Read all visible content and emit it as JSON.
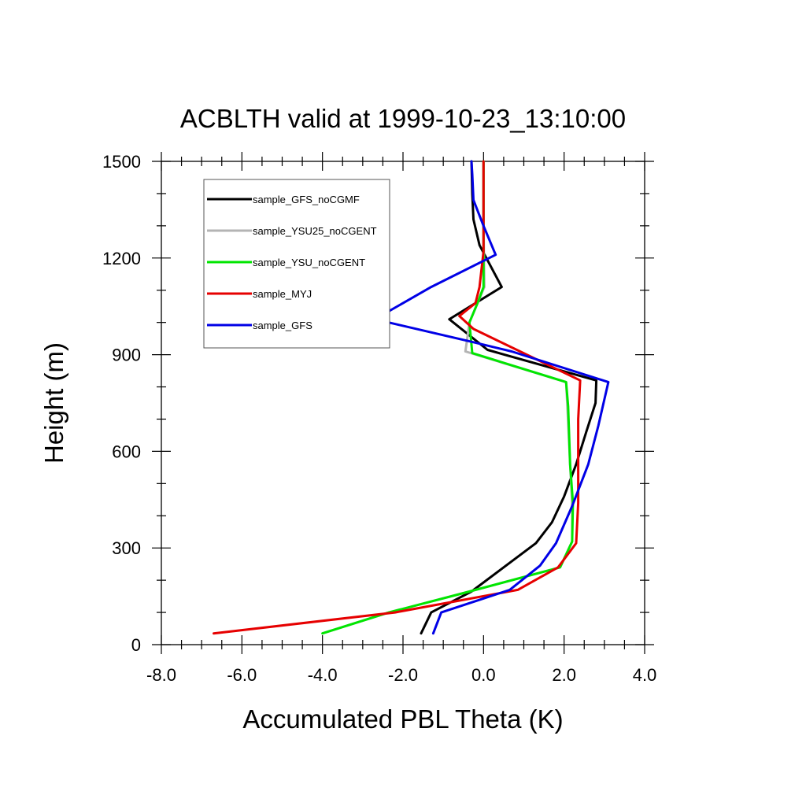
{
  "chart_data": {
    "type": "line",
    "title": "ACBLTH valid at 1999-10-23_13:10:00",
    "xlabel": "Accumulated PBL Theta (K)",
    "ylabel": "Height (m)",
    "xlim": [
      -8.0,
      4.0
    ],
    "ylim": [
      0,
      1500
    ],
    "x_ticks": [
      -8.0,
      -6.0,
      -4.0,
      -2.0,
      0.0,
      2.0,
      4.0
    ],
    "x_tick_labels": [
      "-8.0",
      "-6.0",
      "-4.0",
      "-2.0",
      "0.0",
      "2.0",
      "4.0"
    ],
    "y_ticks": [
      0,
      300,
      600,
      900,
      1200,
      1500
    ],
    "y_tick_labels": [
      "0",
      "300",
      "600",
      "900",
      "1200",
      "1500"
    ],
    "x_minor_step": 0.5,
    "y_minor_step": 100,
    "grid": false,
    "legend_position": "top-left",
    "series": [
      {
        "name": "sample_GFS_noCGMF",
        "color": "#000000",
        "points": [
          [
            -1.55,
            35
          ],
          [
            -1.3,
            100
          ],
          [
            -0.3,
            165
          ],
          [
            0.5,
            240
          ],
          [
            1.3,
            315
          ],
          [
            1.7,
            380
          ],
          [
            2.0,
            460
          ],
          [
            2.3,
            560
          ],
          [
            2.55,
            660
          ],
          [
            2.78,
            750
          ],
          [
            2.8,
            820
          ],
          [
            0.1,
            915
          ],
          [
            -0.85,
            1010
          ],
          [
            0.45,
            1110
          ],
          [
            -0.1,
            1240
          ],
          [
            -0.25,
            1320
          ],
          [
            -0.28,
            1400
          ],
          [
            -0.3,
            1500
          ]
        ]
      },
      {
        "name": "sample_YSU25_noCGENT",
        "color": "#b4b4b4",
        "points": [
          [
            -4.0,
            35
          ],
          [
            -2.35,
            100
          ],
          [
            -0.5,
            160
          ],
          [
            1.9,
            240
          ],
          [
            2.2,
            320
          ],
          [
            2.2,
            440
          ],
          [
            2.15,
            560
          ],
          [
            2.08,
            740
          ],
          [
            2.05,
            815
          ],
          [
            -0.45,
            910
          ],
          [
            -0.35,
            1000
          ],
          [
            -0.15,
            1060
          ],
          [
            0.02,
            1110
          ],
          [
            0.0,
            1300
          ],
          [
            0.0,
            1500
          ]
        ]
      },
      {
        "name": "sample_YSU_noCGENT",
        "color": "#00e600",
        "points": [
          [
            -4.0,
            35
          ],
          [
            -2.35,
            100
          ],
          [
            -0.5,
            160
          ],
          [
            1.9,
            240
          ],
          [
            2.2,
            320
          ],
          [
            2.22,
            440
          ],
          [
            2.15,
            560
          ],
          [
            2.1,
            740
          ],
          [
            2.05,
            815
          ],
          [
            -0.28,
            905
          ],
          [
            -0.35,
            1000
          ],
          [
            -0.15,
            1060
          ],
          [
            0.0,
            1110
          ],
          [
            0.0,
            1300
          ],
          [
            0.0,
            1500
          ]
        ]
      },
      {
        "name": "sample_MYJ",
        "color": "#e60000",
        "points": [
          [
            -6.7,
            35
          ],
          [
            -2.2,
            100
          ],
          [
            0.85,
            170
          ],
          [
            1.85,
            240
          ],
          [
            2.3,
            315
          ],
          [
            2.35,
            440
          ],
          [
            2.35,
            560
          ],
          [
            2.35,
            700
          ],
          [
            2.4,
            820
          ],
          [
            -0.25,
            980
          ],
          [
            -0.6,
            1020
          ],
          [
            -0.2,
            1060
          ],
          [
            -0.1,
            1110
          ],
          [
            0.0,
            1220
          ],
          [
            0.0,
            1500
          ]
        ]
      },
      {
        "name": "sample_GFS",
        "color": "#0000e6",
        "points": [
          [
            -1.25,
            35
          ],
          [
            -1.05,
            100
          ],
          [
            0.65,
            170
          ],
          [
            1.4,
            245
          ],
          [
            1.8,
            315
          ],
          [
            2.2,
            430
          ],
          [
            2.6,
            560
          ],
          [
            2.85,
            680
          ],
          [
            3.1,
            815
          ],
          [
            0.7,
            910
          ],
          [
            -0.3,
            940
          ],
          [
            -2.7,
            1010
          ],
          [
            -1.3,
            1110
          ],
          [
            0.3,
            1210
          ],
          [
            0.0,
            1300
          ],
          [
            -0.25,
            1380
          ],
          [
            -0.28,
            1460
          ],
          [
            -0.3,
            1500
          ]
        ]
      }
    ]
  }
}
